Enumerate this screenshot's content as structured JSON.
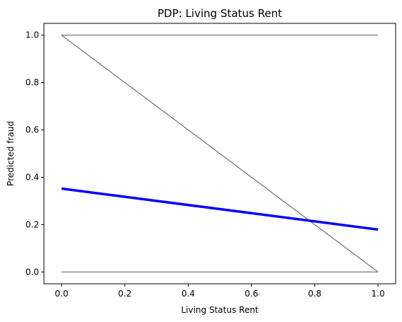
{
  "chart_data": {
    "type": "line",
    "title": "PDP: Living Status Rent",
    "xlabel": "Living Status Rent",
    "ylabel": "Predicted fraud",
    "xlim": [
      -0.0556,
      1.0556
    ],
    "ylim": [
      -0.05,
      1.05
    ],
    "xticks": [
      0.0,
      0.2,
      0.4,
      0.6,
      0.8,
      1.0
    ],
    "yticks": [
      0.0,
      0.2,
      0.4,
      0.6,
      0.8,
      1.0
    ],
    "xtick_labels": [
      "0.0",
      "0.2",
      "0.4",
      "0.6",
      "0.8",
      "1.0"
    ],
    "ytick_labels": [
      "0.0",
      "0.2",
      "0.4",
      "0.6",
      "0.8",
      "1.0"
    ],
    "grid": false,
    "ice_lines": [
      {
        "x": [
          0.0,
          1.0
        ],
        "y": [
          1.0,
          1.0
        ],
        "color": "#555555"
      },
      {
        "x": [
          0.0,
          1.0
        ],
        "y": [
          1.0,
          0.0
        ],
        "color": "#555555"
      },
      {
        "x": [
          0.0,
          1.0
        ],
        "y": [
          0.0,
          0.0
        ],
        "color": "#555555"
      }
    ],
    "average_line": {
      "x": [
        0.0,
        1.0
      ],
      "y": [
        0.352,
        0.179
      ],
      "color": "#0000ff"
    }
  }
}
